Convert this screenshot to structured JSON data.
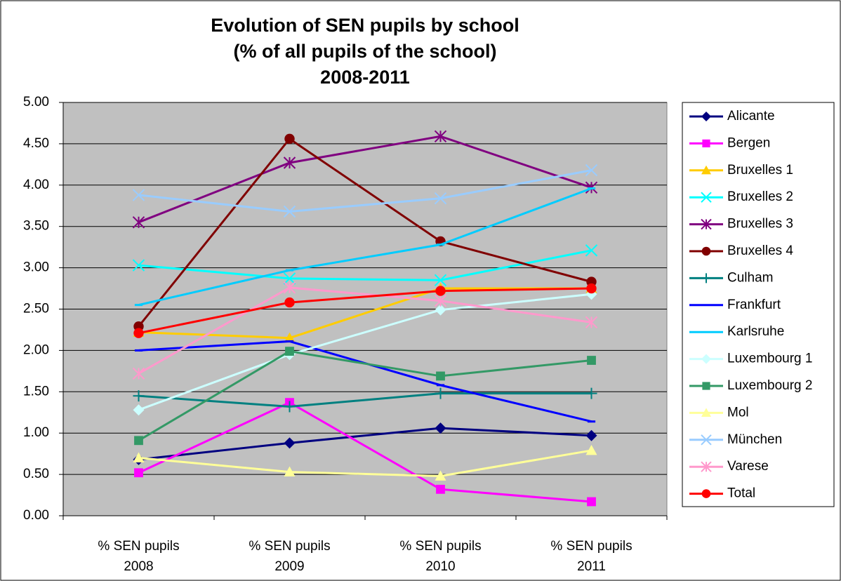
{
  "chart_data": {
    "type": "line",
    "title": "Evolution of SEN pupils by school\n(% of all pupils of the school)\n2008-2011",
    "categories": [
      "% SEN pupils\n2008",
      "% SEN pupils\n2009",
      "% SEN pupils\n2010",
      "% SEN pupils\n2011"
    ],
    "ylim": [
      0,
      5
    ],
    "yticks": [
      {
        "value": 0,
        "label": "0.00"
      },
      {
        "value": 0.5,
        "label": "0.50"
      },
      {
        "value": 1,
        "label": "1.00"
      },
      {
        "value": 1.5,
        "label": "1.50"
      },
      {
        "value": 2,
        "label": "2.00"
      },
      {
        "value": 2.5,
        "label": "2.50"
      },
      {
        "value": 3,
        "label": "3.00"
      },
      {
        "value": 3.5,
        "label": "3.50"
      },
      {
        "value": 4,
        "label": "4.00"
      },
      {
        "value": 4.5,
        "label": "4.50"
      },
      {
        "value": 5,
        "label": "5.00"
      }
    ],
    "grid": true,
    "legend": "right",
    "series": [
      {
        "name": "Alicante",
        "color": "#000080",
        "marker": "diamond",
        "values": [
          0.68,
          0.88,
          1.06,
          0.97
        ]
      },
      {
        "name": "Bergen",
        "color": "#ff00ff",
        "marker": "square",
        "values": [
          0.52,
          1.37,
          0.32,
          0.17
        ]
      },
      {
        "name": "Bruxelles 1",
        "color": "#ffcc00",
        "marker": "triangle",
        "values": [
          2.22,
          2.15,
          2.75,
          2.75
        ]
      },
      {
        "name": "Bruxelles 2",
        "color": "#00ffff",
        "marker": "x",
        "values": [
          3.03,
          2.87,
          2.85,
          3.21
        ]
      },
      {
        "name": "Bruxelles 3",
        "color": "#800080",
        "marker": "star",
        "values": [
          3.55,
          4.27,
          4.59,
          3.97
        ]
      },
      {
        "name": "Bruxelles 4",
        "color": "#800000",
        "marker": "circle",
        "values": [
          2.29,
          4.56,
          3.32,
          2.83
        ]
      },
      {
        "name": "Culham",
        "color": "#008080",
        "marker": "plus",
        "values": [
          1.45,
          1.32,
          1.48,
          1.48
        ]
      },
      {
        "name": "Frankfurt",
        "color": "#0000ff",
        "marker": "dash",
        "values": [
          2.0,
          2.11,
          1.58,
          1.14
        ]
      },
      {
        "name": "Karlsruhe",
        "color": "#00ccff",
        "marker": "dash",
        "values": [
          2.55,
          2.97,
          3.28,
          3.96
        ]
      },
      {
        "name": "Luxembourg 1",
        "color": "#ccffff",
        "marker": "diamond",
        "values": [
          1.28,
          1.95,
          2.49,
          2.68
        ]
      },
      {
        "name": "Luxembourg 2",
        "color": "#339966",
        "marker": "square",
        "values": [
          0.91,
          1.99,
          1.69,
          1.88
        ]
      },
      {
        "name": "Mol",
        "color": "#ffff99",
        "marker": "triangle",
        "values": [
          0.7,
          0.53,
          0.48,
          0.79
        ]
      },
      {
        "name": "München",
        "color": "#99ccff",
        "marker": "x",
        "values": [
          3.88,
          3.68,
          3.84,
          4.18
        ]
      },
      {
        "name": "Varese",
        "color": "#ff99cc",
        "marker": "star",
        "values": [
          1.72,
          2.76,
          2.6,
          2.34
        ]
      },
      {
        "name": "Total",
        "color": "#ff0000",
        "marker": "circle",
        "values": [
          2.21,
          2.58,
          2.72,
          2.75
        ]
      }
    ]
  }
}
